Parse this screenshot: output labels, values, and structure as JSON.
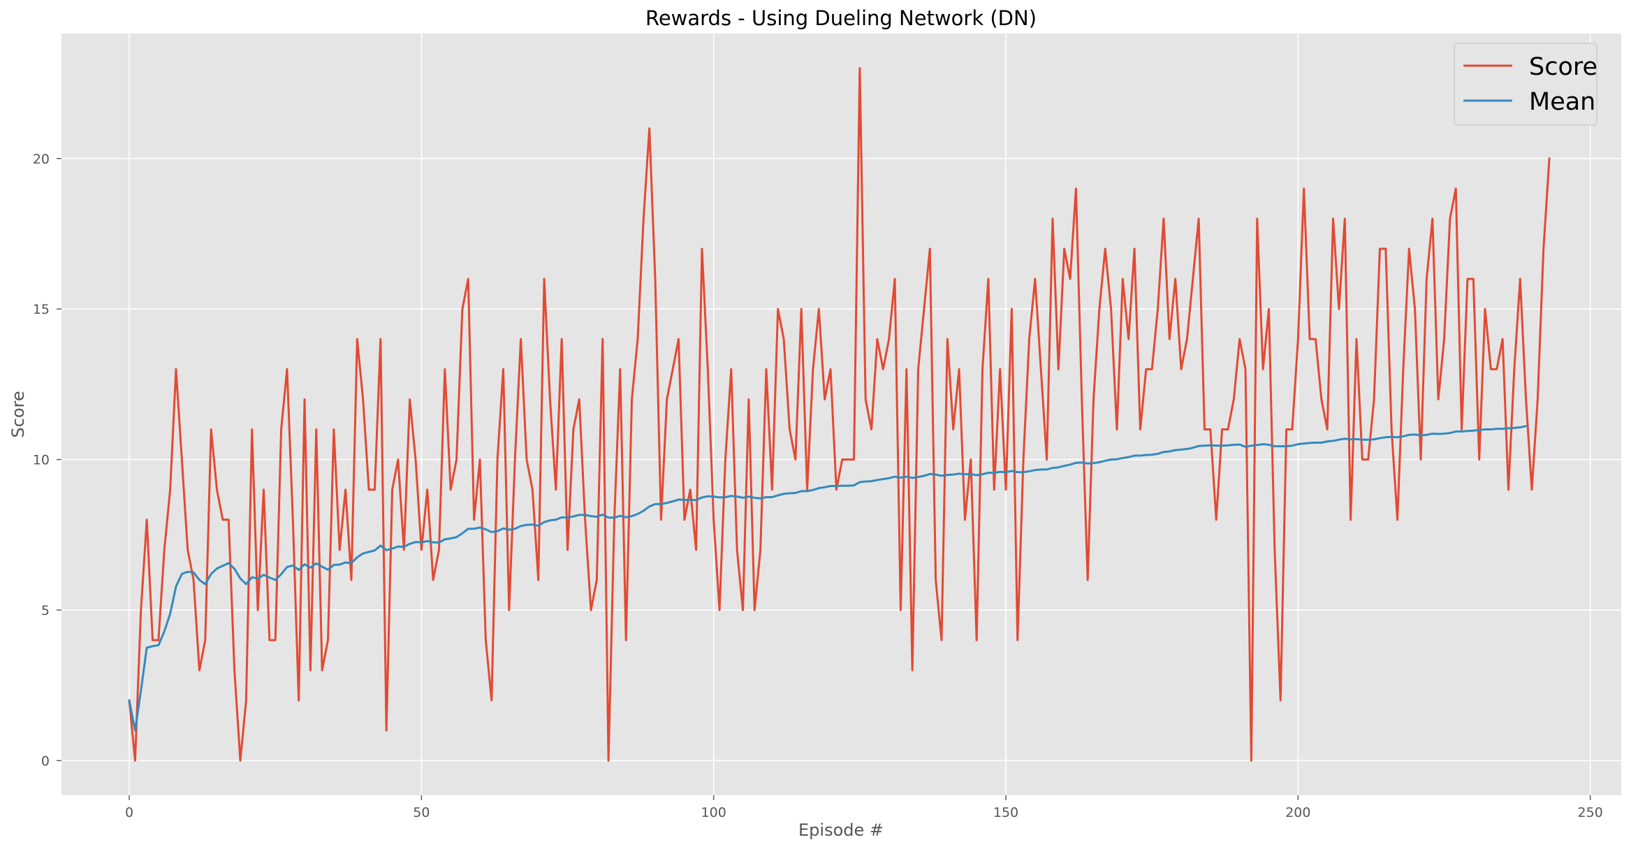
{
  "chart_data": {
    "type": "line",
    "title": "Rewards - Using Dueling Network (DN)",
    "xlabel": "Episode #",
    "ylabel": "Score",
    "xlim": [
      -11.6,
      255.3
    ],
    "ylim": [
      -1.15,
      24.15
    ],
    "xticks": [
      0,
      50,
      100,
      150,
      200,
      250
    ],
    "yticks": [
      0,
      5,
      10,
      15,
      20
    ],
    "grid": true,
    "legend_position": "top-right",
    "series": [
      {
        "name": "Score",
        "color": "#E24A33",
        "values": [
          2,
          0,
          5,
          8,
          4,
          4,
          7,
          9,
          13,
          10,
          7,
          6,
          3,
          4,
          11,
          9,
          8,
          8,
          3,
          0,
          2,
          11,
          5,
          9,
          4,
          4,
          11,
          13,
          8,
          2,
          12,
          3,
          11,
          3,
          4,
          11,
          7,
          9,
          6,
          14,
          12,
          9,
          9,
          14,
          1,
          9,
          10,
          7,
          12,
          10,
          7,
          9,
          6,
          7,
          13,
          9,
          10,
          15,
          16,
          8,
          10,
          4,
          2,
          10,
          13,
          5,
          10,
          14,
          10,
          9,
          6,
          16,
          12,
          9,
          14,
          7,
          11,
          12,
          8,
          5,
          6,
          14,
          0,
          8,
          13,
          4,
          12,
          14,
          18,
          21,
          16,
          8,
          12,
          13,
          14,
          8,
          9,
          7,
          17,
          13,
          8,
          5,
          10,
          13,
          7,
          5,
          12,
          5,
          7,
          13,
          9,
          15,
          14,
          11,
          10,
          15,
          9,
          13,
          15,
          12,
          13,
          9,
          10,
          10,
          10,
          23,
          12,
          11,
          14,
          13,
          14,
          16,
          5,
          13,
          3,
          13,
          15,
          17,
          6,
          4,
          14,
          11,
          13,
          8,
          10,
          4,
          13,
          16,
          9,
          13,
          9,
          15,
          4,
          10,
          14,
          16,
          13,
          10,
          18,
          13,
          17,
          16,
          19,
          12,
          6,
          12,
          15,
          17,
          15,
          11,
          16,
          14,
          17,
          11,
          13,
          13,
          15,
          18,
          14,
          16,
          13,
          14,
          16,
          18,
          11,
          11,
          8,
          11,
          11,
          12,
          14,
          13,
          0,
          18,
          13,
          15,
          7,
          2,
          11,
          11,
          14,
          19,
          14,
          14,
          12,
          11,
          18,
          15,
          18,
          8,
          14,
          10,
          10,
          12,
          17,
          17,
          11,
          8,
          13,
          17,
          15,
          10,
          16,
          18,
          12,
          14,
          18,
          19,
          11,
          16,
          16,
          10,
          15,
          13,
          13,
          14,
          9,
          13,
          16,
          12,
          9,
          12,
          17,
          20
        ]
      },
      {
        "name": "Mean",
        "color": "#348ABD",
        "values": [
          2,
          1,
          2.33,
          3.75,
          3.8,
          3.83,
          4.29,
          4.88,
          5.78,
          6.2,
          6.27,
          6.25,
          6,
          5.86,
          6.2,
          6.38,
          6.47,
          6.56,
          6.37,
          6.05,
          5.86,
          6.09,
          6.04,
          6.17,
          6.08,
          6,
          6.19,
          6.43,
          6.48,
          6.33,
          6.52,
          6.41,
          6.55,
          6.44,
          6.34,
          6.5,
          6.51,
          6.58,
          6.56,
          6.75,
          6.88,
          6.93,
          6.98,
          7.14,
          6.99,
          7.04,
          7.11,
          7.1,
          7.2,
          7.26,
          7.25,
          7.29,
          7.25,
          7.24,
          7.35,
          7.38,
          7.42,
          7.55,
          7.7,
          7.7,
          7.74,
          7.68,
          7.59,
          7.62,
          7.71,
          7.67,
          7.7,
          7.79,
          7.83,
          7.84,
          7.8,
          7.92,
          7.98,
          8,
          8.08,
          8.07,
          8.11,
          8.16,
          8.16,
          8.12,
          8.1,
          8.17,
          8.07,
          8.07,
          8.13,
          8.08,
          8.12,
          8.19,
          8.3,
          8.44,
          8.52,
          8.52,
          8.56,
          8.61,
          8.67,
          8.66,
          8.66,
          8.65,
          8.74,
          8.78,
          8.77,
          8.74,
          8.75,
          8.79,
          8.77,
          8.73,
          8.77,
          8.73,
          8.71,
          8.75,
          8.75,
          8.81,
          8.86,
          8.88,
          8.89,
          8.95,
          8.95,
          8.99,
          9.05,
          9.08,
          9.12,
          9.12,
          9.13,
          9.13,
          9.14,
          9.25,
          9.27,
          9.28,
          9.32,
          9.35,
          9.38,
          9.43,
          9.4,
          9.43,
          9.39,
          9.42,
          9.46,
          9.52,
          9.5,
          9.46,
          9.49,
          9.5,
          9.53,
          9.51,
          9.51,
          9.48,
          9.51,
          9.56,
          9.56,
          9.59,
          9.58,
          9.62,
          9.58,
          9.58,
          9.61,
          9.65,
          9.67,
          9.67,
          9.72,
          9.74,
          9.79,
          9.83,
          9.89,
          9.9,
          9.87,
          9.88,
          9.91,
          9.96,
          10,
          10.01,
          10.05,
          10.08,
          10.13,
          10.13,
          10.15,
          10.16,
          10.19,
          10.25,
          10.27,
          10.31,
          10.33,
          10.35,
          10.39,
          10.45,
          10.46,
          10.47,
          10.46,
          10.46,
          10.47,
          10.49,
          10.5,
          10.42,
          10.46,
          10.48,
          10.51,
          10.49,
          10.44,
          10.44,
          10.44,
          10.46,
          10.51,
          10.53,
          10.55,
          10.56,
          10.56,
          10.6,
          10.62,
          10.66,
          10.69,
          10.67,
          10.68,
          10.66,
          10.66,
          10.67,
          10.71,
          10.74,
          10.75,
          10.74,
          10.77,
          10.82,
          10.83,
          10.8,
          10.82,
          10.86,
          10.85,
          10.86,
          10.88,
          10.93,
          10.93,
          10.95,
          10.96,
          10.98,
          11,
          11,
          11.02,
          11.02,
          11.04,
          11.05,
          11.07,
          11.11
        ]
      }
    ]
  }
}
